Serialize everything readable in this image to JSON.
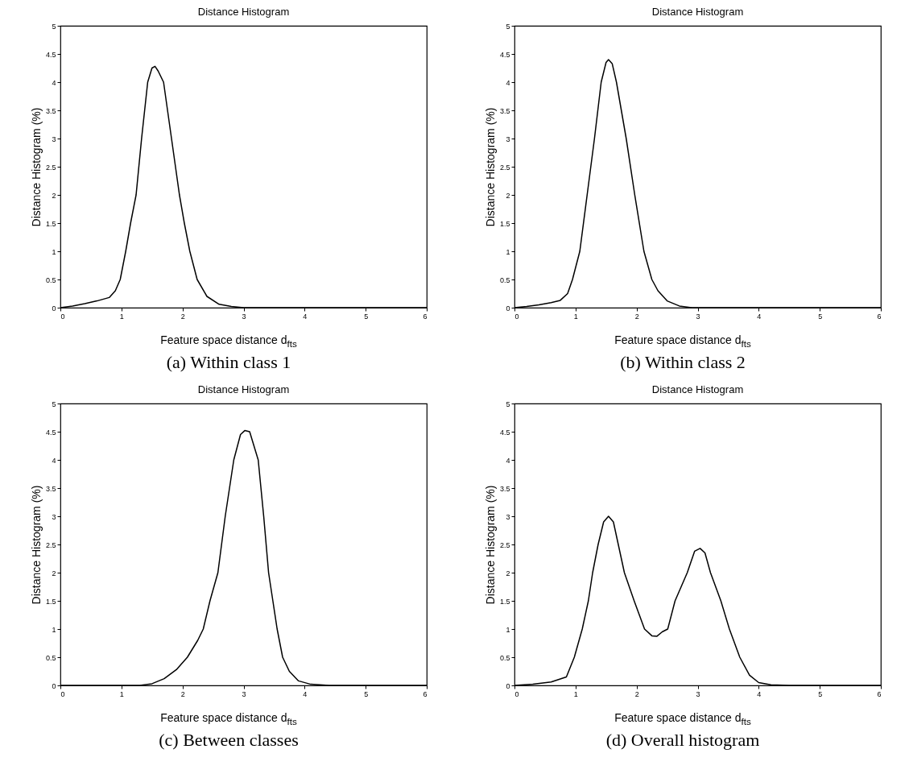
{
  "chart_data": [
    {
      "type": "line",
      "title": "Distance Histogram",
      "xlabel": "Feature space distance d$_{fts}$",
      "ylabel": "Distance Histogram (%)",
      "annotations": [
        "(a) Within class 1"
      ],
      "xlim": [
        0,
        6
      ],
      "ylim": [
        0,
        5
      ],
      "xticks": [
        0,
        1,
        2,
        3,
        4,
        5,
        6
      ],
      "yticks": [
        0,
        0.5,
        1,
        1.5,
        2,
        2.5,
        3,
        3.5,
        4,
        4.5,
        5
      ],
      "grid": false,
      "series": [
        {
          "color": "#000000",
          "x": [
            0,
            0.2,
            0.4,
            0.6,
            0.8,
            0.9,
            0.98,
            1.07,
            1.15,
            1.24,
            1.33,
            1.43,
            1.5,
            1.55,
            1.6,
            1.69,
            1.82,
            1.95,
            2.03,
            2.12,
            2.24,
            2.4,
            2.6,
            2.8,
            3.0,
            6
          ],
          "values": [
            0,
            0.03,
            0.07,
            0.12,
            0.18,
            0.3,
            0.5,
            1.0,
            1.5,
            2.0,
            3.0,
            4.0,
            4.25,
            4.28,
            4.2,
            4.0,
            3.0,
            2.0,
            1.5,
            1.0,
            0.5,
            0.2,
            0.06,
            0.02,
            0,
            0
          ]
        }
      ]
    },
    {
      "type": "line",
      "title": "Distance Histogram",
      "xlabel": "Feature space distance d$_{fts}$",
      "ylabel": "Distance Histogram (%)",
      "annotations": [
        "(b) Within class 2"
      ],
      "xlim": [
        0,
        6
      ],
      "ylim": [
        0,
        5
      ],
      "xticks": [
        0,
        1,
        2,
        3,
        4,
        5,
        6
      ],
      "yticks": [
        0,
        0.5,
        1,
        1.5,
        2,
        2.5,
        3,
        3.5,
        4,
        4.5,
        5
      ],
      "grid": false,
      "series": [
        {
          "color": "#000000",
          "x": [
            0,
            0.2,
            0.4,
            0.6,
            0.75,
            0.87,
            0.95,
            1.07,
            1.19,
            1.31,
            1.42,
            1.5,
            1.54,
            1.6,
            1.67,
            1.83,
            1.97,
            2.12,
            2.25,
            2.35,
            2.5,
            2.7,
            2.9,
            6
          ],
          "values": [
            0,
            0.02,
            0.05,
            0.09,
            0.13,
            0.25,
            0.5,
            1.0,
            2.0,
            3.0,
            4.0,
            4.35,
            4.4,
            4.33,
            4.0,
            3.0,
            2.0,
            1.0,
            0.5,
            0.3,
            0.12,
            0.03,
            0,
            0
          ]
        }
      ]
    },
    {
      "type": "line",
      "title": "Distance Histogram",
      "xlabel": "Feature space distance d$_{fts}$",
      "ylabel": "Distance Histogram (%)",
      "annotations": [
        "(c) Between classes"
      ],
      "xlim": [
        0,
        6
      ],
      "ylim": [
        0,
        5
      ],
      "xticks": [
        0,
        1,
        2,
        3,
        4,
        5,
        6
      ],
      "yticks": [
        0,
        0.5,
        1,
        1.5,
        2,
        2.5,
        3,
        3.5,
        4,
        4.5,
        5
      ],
      "grid": false,
      "series": [
        {
          "color": "#000000",
          "x": [
            0,
            1,
            1.3,
            1.5,
            1.7,
            1.9,
            2.08,
            2.25,
            2.34,
            2.45,
            2.58,
            2.7,
            2.84,
            2.95,
            3.02,
            3.1,
            3.24,
            3.33,
            3.41,
            3.48,
            3.55,
            3.64,
            3.75,
            3.9,
            4.1,
            4.4,
            6
          ],
          "values": [
            0,
            0,
            0,
            0.03,
            0.12,
            0.28,
            0.5,
            0.8,
            1.0,
            1.5,
            2.0,
            3.0,
            4.0,
            4.45,
            4.52,
            4.5,
            4.0,
            3.0,
            2.0,
            1.5,
            1.0,
            0.5,
            0.25,
            0.08,
            0.02,
            0,
            0
          ]
        }
      ]
    },
    {
      "type": "line",
      "title": "Distance Histogram",
      "xlabel": "Feature space distance d$_{fts}$",
      "ylabel": "Distance Histogram (%)",
      "annotations": [
        "(d) Overall histogram"
      ],
      "xlim": [
        0,
        6
      ],
      "ylim": [
        0,
        5
      ],
      "xticks": [
        0,
        1,
        2,
        3,
        4,
        5,
        6
      ],
      "yticks": [
        0,
        0.5,
        1,
        1.5,
        2,
        2.5,
        3,
        3.5,
        4,
        4.5,
        5
      ],
      "grid": false,
      "series": [
        {
          "color": "#000000",
          "x": [
            0,
            0.3,
            0.6,
            0.85,
            0.98,
            1.11,
            1.21,
            1.28,
            1.37,
            1.46,
            1.54,
            1.62,
            1.7,
            1.8,
            1.96,
            2.13,
            2.25,
            2.33,
            2.42,
            2.51,
            2.63,
            2.83,
            2.95,
            3.04,
            3.12,
            3.21,
            3.38,
            3.52,
            3.69,
            3.85,
            4.0,
            4.2,
            4.5,
            6
          ],
          "values": [
            0,
            0.02,
            0.06,
            0.15,
            0.5,
            1.0,
            1.5,
            2.0,
            2.5,
            2.9,
            3.0,
            2.9,
            2.5,
            2.0,
            1.5,
            1.0,
            0.88,
            0.87,
            0.95,
            1.0,
            1.5,
            2.0,
            2.38,
            2.43,
            2.35,
            2.0,
            1.5,
            1.0,
            0.5,
            0.18,
            0.05,
            0.01,
            0,
            0
          ]
        }
      ]
    }
  ]
}
